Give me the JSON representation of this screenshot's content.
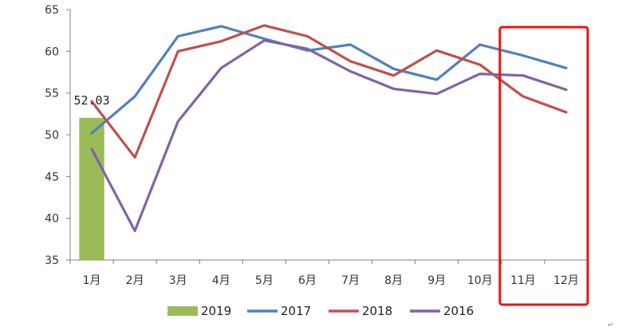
{
  "chart_data": {
    "type": "line",
    "categories": [
      "1月",
      "2月",
      "3月",
      "4月",
      "5月",
      "6月",
      "7月",
      "8月",
      "9月",
      "10月",
      "11月",
      "12月"
    ],
    "ylim": [
      35,
      65
    ],
    "yticks": [
      35,
      40,
      45,
      50,
      55,
      60,
      65
    ],
    "bar_series": {
      "name": "2019",
      "color": "#9bbb59",
      "values": [
        52.03
      ],
      "label": "52.03"
    },
    "series": [
      {
        "name": "2017",
        "color": "#4f81bd",
        "values": [
          50.2,
          54.6,
          61.8,
          63.0,
          61.5,
          60.1,
          60.8,
          57.9,
          56.6,
          60.8,
          59.5,
          58.0
        ]
      },
      {
        "name": "2018",
        "color": "#c0504d",
        "values": [
          54.0,
          47.3,
          60.0,
          61.2,
          63.1,
          61.8,
          58.8,
          57.1,
          60.1,
          58.4,
          54.6,
          52.7
        ]
      },
      {
        "name": "2016",
        "color": "#8064a2",
        "values": [
          48.3,
          38.5,
          51.6,
          58.0,
          61.3,
          60.3,
          57.6,
          55.5,
          54.9,
          57.3,
          57.1,
          55.4
        ]
      }
    ],
    "legend": [
      "2019",
      "2017",
      "2018",
      "2016"
    ],
    "legend_position": "bottom",
    "highlight": {
      "categories": [
        "11月",
        "12月"
      ],
      "color": "#ee1111"
    },
    "grid": false
  },
  "corner_mark": "↵"
}
